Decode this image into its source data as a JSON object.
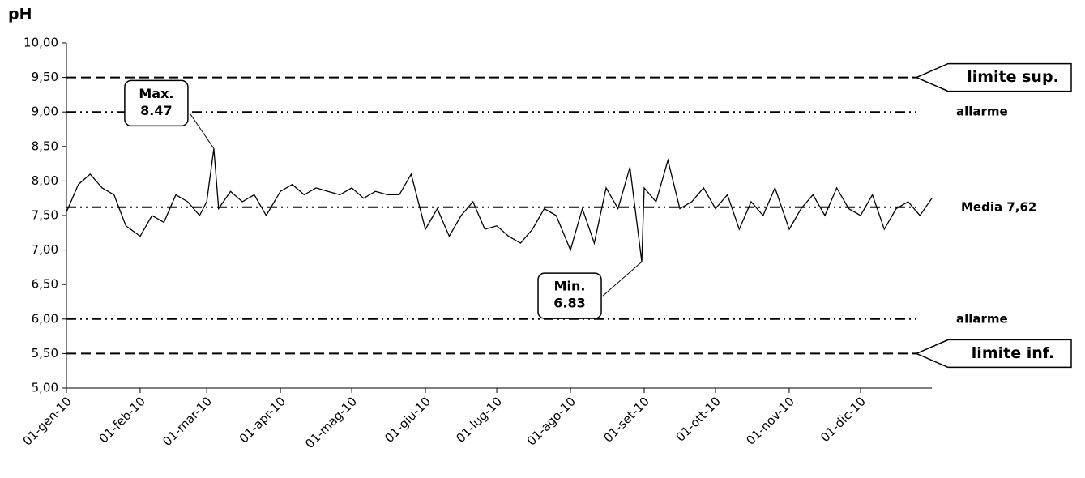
{
  "chart_data": {
    "type": "line",
    "title": "pH",
    "x": [
      "01-gen-10",
      "06-gen-10",
      "11-gen-10",
      "16-gen-10",
      "21-gen-10",
      "26-gen-10",
      "01-feb-10",
      "06-feb-10",
      "11-feb-10",
      "16-feb-10",
      "21-feb-10",
      "26-feb-10",
      "01-mar-10",
      "04-mar-10",
      "06-mar-10",
      "11-mar-10",
      "16-mar-10",
      "21-mar-10",
      "26-mar-10",
      "01-apr-10",
      "06-apr-10",
      "11-apr-10",
      "16-apr-10",
      "21-apr-10",
      "26-apr-10",
      "01-mag-10",
      "06-mag-10",
      "11-mag-10",
      "16-mag-10",
      "21-mag-10",
      "26-mag-10",
      "01-giu-10",
      "06-giu-10",
      "11-giu-10",
      "16-giu-10",
      "21-giu-10",
      "26-giu-10",
      "01-lug-10",
      "06-lug-10",
      "11-lug-10",
      "16-lug-10",
      "21-lug-10",
      "26-lug-10",
      "01-ago-10",
      "06-ago-10",
      "11-ago-10",
      "16-ago-10",
      "21-ago-10",
      "26-ago-10",
      "31-ago-10",
      "01-set-10",
      "06-set-10",
      "11-set-10",
      "16-set-10",
      "21-set-10",
      "26-set-10",
      "01-ott-10",
      "06-ott-10",
      "11-ott-10",
      "16-ott-10",
      "21-ott-10",
      "26-ott-10",
      "01-nov-10",
      "06-nov-10",
      "11-nov-10",
      "16-nov-10",
      "21-nov-10",
      "26-nov-10",
      "01-dic-10",
      "06-dic-10",
      "11-dic-10",
      "16-dic-10",
      "21-dic-10",
      "26-dic-10",
      "31-dic-10"
    ],
    "series": [
      {
        "color": "#000000",
        "values": [
          7.55,
          7.95,
          8.1,
          7.9,
          7.8,
          7.35,
          7.2,
          7.5,
          7.4,
          7.8,
          7.7,
          7.5,
          7.7,
          8.47,
          7.6,
          7.85,
          7.7,
          7.8,
          7.5,
          7.85,
          7.95,
          7.8,
          7.9,
          7.85,
          7.8,
          7.9,
          7.75,
          7.85,
          7.8,
          7.8,
          8.1,
          7.3,
          7.6,
          7.2,
          7.5,
          7.7,
          7.3,
          7.35,
          7.2,
          7.1,
          7.3,
          7.6,
          7.5,
          7.0,
          7.6,
          7.1,
          7.9,
          7.6,
          8.2,
          6.83,
          7.9,
          7.7,
          8.3,
          7.6,
          7.7,
          7.9,
          7.6,
          7.8,
          7.3,
          7.7,
          7.5,
          7.9,
          7.3,
          7.6,
          7.8,
          7.5,
          7.9,
          7.6,
          7.5,
          7.8,
          7.3,
          7.6,
          7.7,
          7.5,
          7.75
        ]
      }
    ],
    "xlim": [
      "01-gen-10",
      "31-dic-10"
    ],
    "xticks": [
      "01-gen-10",
      "01-feb-10",
      "01-mar-10",
      "01-apr-10",
      "01-mag-10",
      "01-giu-10",
      "01-lug-10",
      "01-ago-10",
      "01-set-10",
      "01-ott-10",
      "01-nov-10",
      "01-dic-10"
    ],
    "ylim": [
      5,
      10
    ],
    "yticks": [
      {
        "value": 5,
        "label": "5,00"
      },
      {
        "value": 5.5,
        "label": "5,50"
      },
      {
        "value": 6,
        "label": "6,00"
      },
      {
        "value": 6.5,
        "label": "6,50"
      },
      {
        "value": 7,
        "label": "7,00"
      },
      {
        "value": 7.5,
        "label": "7,50"
      },
      {
        "value": 8,
        "label": "8,00"
      },
      {
        "value": 8.5,
        "label": "8,50"
      },
      {
        "value": 9,
        "label": "9,00"
      },
      {
        "value": 9.5,
        "label": "9,50"
      },
      {
        "value": 10,
        "label": "10,00"
      }
    ],
    "reference_lines": [
      {
        "value": 9.5,
        "label": "limite sup.",
        "style": "dashed",
        "boxed": true
      },
      {
        "value": 9,
        "label": "allarme",
        "style": "dashdot",
        "boxed": false
      },
      {
        "value": 7.62,
        "label": "Media 7,62",
        "style": "dashdot",
        "boxed": false
      },
      {
        "value": 6,
        "label": "allarme",
        "style": "dashdot",
        "boxed": false
      },
      {
        "value": 5.5,
        "label": "limite inf.",
        "style": "dashed",
        "boxed": true
      }
    ],
    "annotations": [
      {
        "text": "Max.",
        "x": "04-mar-10",
        "value": 8.47
      },
      {
        "text": "Min.",
        "x": "31-ago-10",
        "value": 6.83
      }
    ]
  }
}
